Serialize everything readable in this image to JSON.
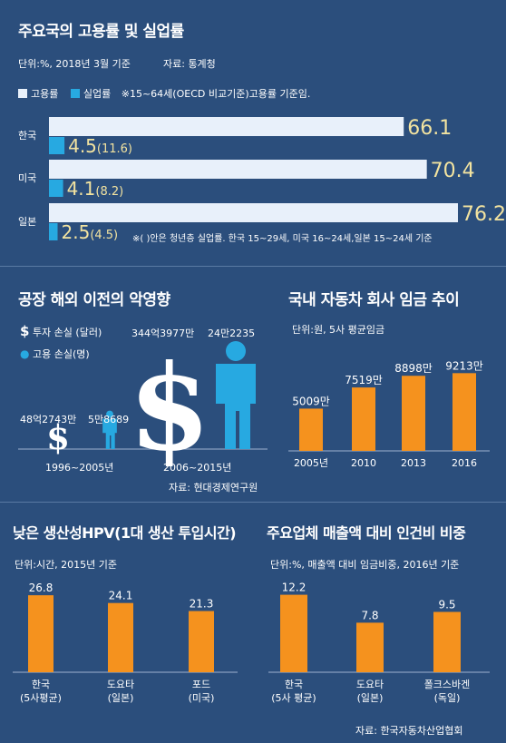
{
  "colors": {
    "background": "#2b4e7c",
    "employment": "#e8f0fa",
    "unemployment": "#27a9e1",
    "bar_orange": "#f5921e",
    "value_yellow": "#f2e3a0"
  },
  "section1": {
    "title": "주요국의 고용률 및 실업률",
    "unit": "단위:%, 2018년 3월 기준",
    "source": "자료: 통계청",
    "legend_employment": "고용률",
    "legend_unemployment": "실업률",
    "legend_note": "※15~64세(OECD 비교기준)고용률 기준임.",
    "footnote": "※( )안은 청년층 실업률. 한국 15~29세, 미국 16~24세,일본 15~24세 기준"
  },
  "section2": {
    "title": "공장 해외 이전의 악영향",
    "legend_dollar": "투자 손실 (달러)",
    "legend_person": "고용 손실(명)",
    "source": "자료: 현대경제연구원"
  },
  "section3": {
    "title": "국내 자동차 회사 임금 추이",
    "unit": "단위:원, 5사 평균임금"
  },
  "section4": {
    "title": "낮은 생산성HPV(1대 생산 투입시간)",
    "unit": "단위:시간, 2015년 기준"
  },
  "section5": {
    "title": "주요업체 매출액 대비 인건비 비중",
    "unit": "단위:%, 매출액 대비 임금비중, 2016년 기준",
    "source": "자료: 한국자동차산업협회"
  },
  "chart_data": [
    {
      "type": "bar",
      "orientation": "horizontal",
      "categories": [
        "한국",
        "미국",
        "일본"
      ],
      "series": [
        {
          "name": "고용률",
          "values": [
            66.1,
            70.4,
            76.2
          ],
          "labels": [
            "66.1",
            "70.4",
            "76.2"
          ]
        },
        {
          "name": "실업률",
          "values": [
            4.5,
            4.1,
            2.5
          ],
          "labels": [
            "4.5",
            "4.1",
            "2.5"
          ]
        }
      ],
      "youth_unemployment": [
        "(11.6)",
        "(8.2)",
        "(4.5)"
      ],
      "xlim": [
        0,
        80
      ]
    },
    {
      "type": "bar",
      "categories": [
        "1996~2005년",
        "2006~2015년"
      ],
      "series": [
        {
          "name": "투자 손실 (달러)",
          "labels": [
            "48억2743만",
            "344억3977만"
          ],
          "values": [
            4827430000,
            34439770000
          ]
        },
        {
          "name": "고용 손실(명)",
          "labels": [
            "5만8689",
            "24만2235"
          ],
          "values": [
            58689,
            242235
          ]
        }
      ]
    },
    {
      "type": "bar",
      "categories": [
        "2005년",
        "2010",
        "2013",
        "2016"
      ],
      "values": [
        50090000,
        75190000,
        88980000,
        92130000
      ],
      "value_labels": [
        "5009만",
        "7519만",
        "8898만",
        "9213만"
      ],
      "ylim": [
        0,
        100000000
      ]
    },
    {
      "type": "bar",
      "categories": [
        "한국\n(5사평균)",
        "도요타\n(일본)",
        "포드\n(미국)"
      ],
      "values": [
        26.8,
        24.1,
        21.3
      ],
      "value_labels": [
        "26.8",
        "24.1",
        "21.3"
      ],
      "ylim": [
        0,
        30
      ]
    },
    {
      "type": "bar",
      "categories": [
        "한국\n(5사 평균)",
        "도요타\n(일본)",
        "폴크스바겐\n(독일)"
      ],
      "values": [
        12.2,
        7.8,
        9.5
      ],
      "value_labels": [
        "12.2",
        "7.8",
        "9.5"
      ],
      "ylim": [
        0,
        14
      ]
    }
  ]
}
